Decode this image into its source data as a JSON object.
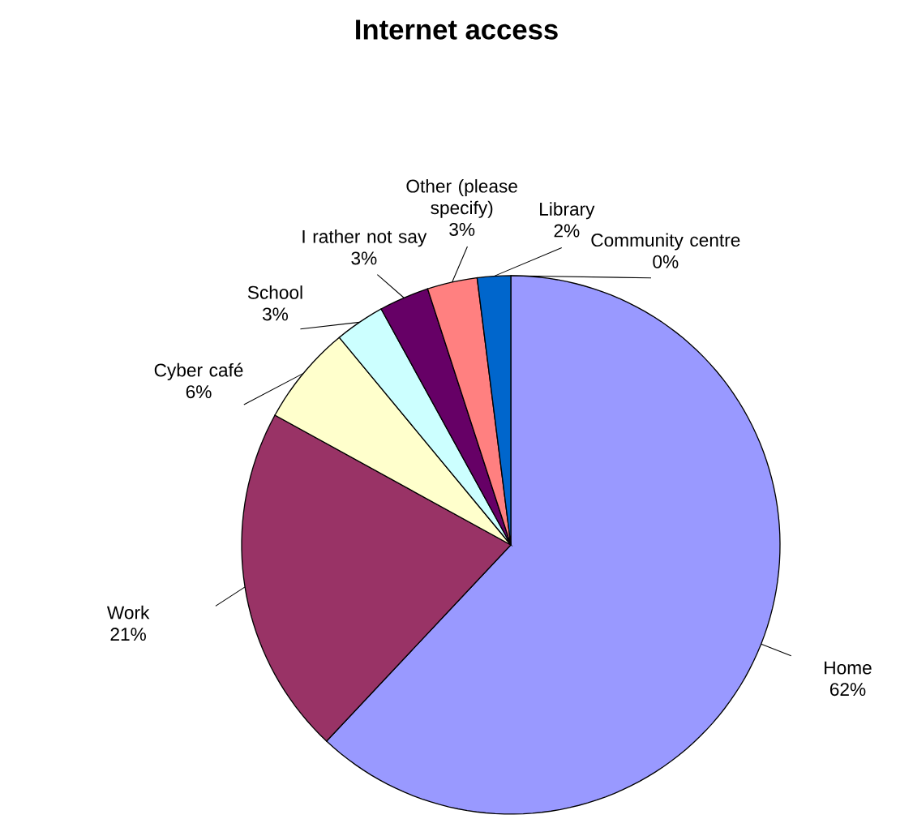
{
  "chart_data": {
    "type": "pie",
    "title": "Internet access",
    "categories": [
      "Home",
      "Work",
      "Cyber café",
      "School",
      "I rather not say",
      "Other (please specify)",
      "Library",
      "Community centre"
    ],
    "values": [
      62,
      21,
      6,
      3,
      3,
      3,
      2,
      0
    ],
    "colors": [
      "#9999ff",
      "#993366",
      "#ffffcc",
      "#ccffff",
      "#660066",
      "#ff8080",
      "#0066cc",
      "#ccccff"
    ],
    "value_labels": [
      "62%",
      "21%",
      "6%",
      "3%",
      "3%",
      "3%",
      "2%",
      "0%"
    ]
  }
}
